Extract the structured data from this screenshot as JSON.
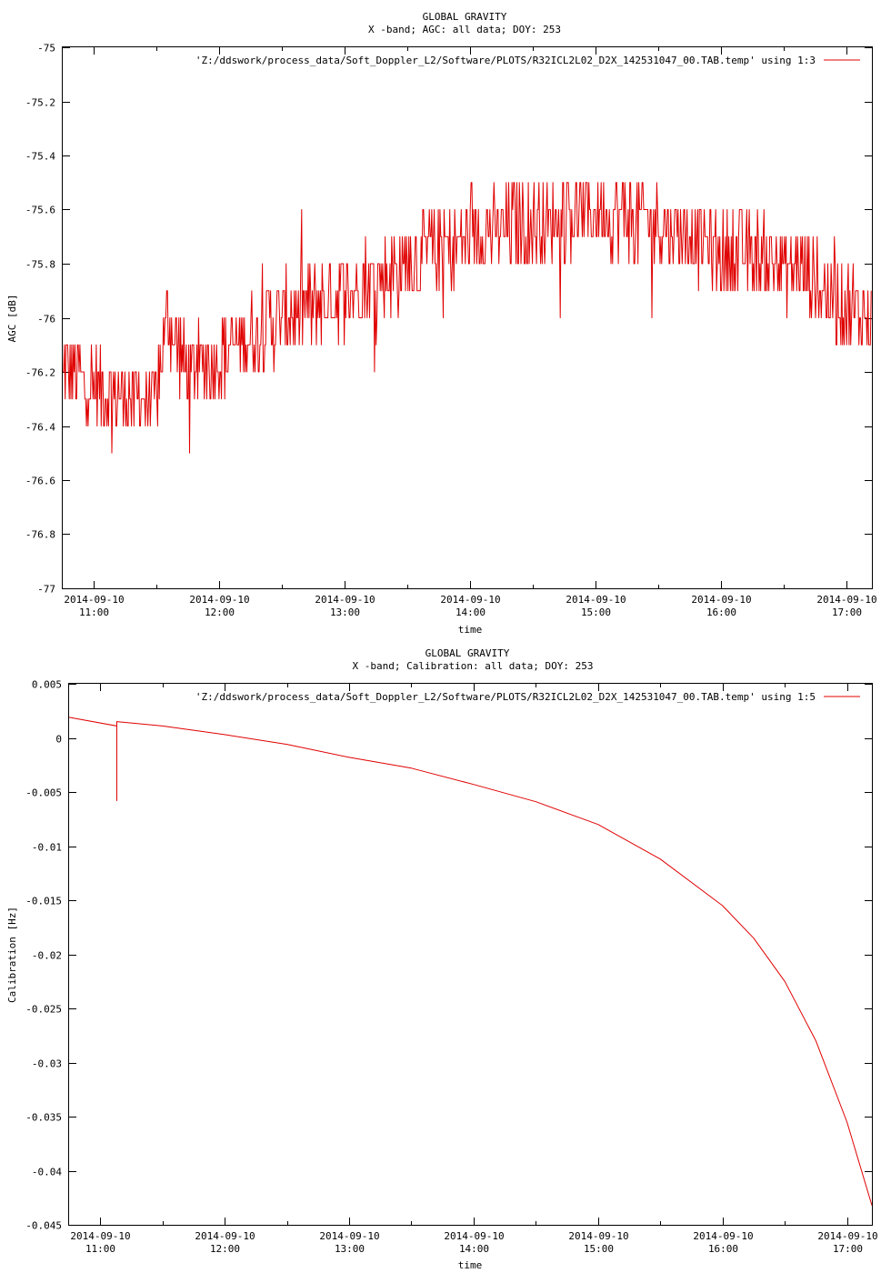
{
  "chart_data": [
    {
      "type": "line",
      "title": "GLOBAL GRAVITY",
      "subtitle": "X -band; AGC: all data; DOY: 253",
      "xlabel": "time",
      "ylabel": "AGC [dB]",
      "xlim": [
        "2014-09-10 10:45",
        "2014-09-10 17:12"
      ],
      "ylim": [
        -77,
        -75
      ],
      "grid": false,
      "legend_position": "top-right",
      "color": "#e00000",
      "yticks": [
        {
          "value": -75,
          "label": "-75"
        },
        {
          "value": -75.2,
          "label": "-75.2"
        },
        {
          "value": -75.4,
          "label": "-75.4"
        },
        {
          "value": -75.6,
          "label": "-75.6"
        },
        {
          "value": -75.8,
          "label": "-75.8"
        },
        {
          "value": -76,
          "label": "-76"
        },
        {
          "value": -76.2,
          "label": "-76.2"
        },
        {
          "value": -76.4,
          "label": "-76.4"
        },
        {
          "value": -76.6,
          "label": "-76.6"
        },
        {
          "value": -76.8,
          "label": "-76.8"
        },
        {
          "value": -77,
          "label": "-77"
        }
      ],
      "xticks": [
        {
          "value": "2014-09-10 11:00",
          "date": "2014-09-10",
          "time": "11:00"
        },
        {
          "value": "2014-09-10 12:00",
          "date": "2014-09-10",
          "time": "12:00"
        },
        {
          "value": "2014-09-10 13:00",
          "date": "2014-09-10",
          "time": "13:00"
        },
        {
          "value": "2014-09-10 14:00",
          "date": "2014-09-10",
          "time": "14:00"
        },
        {
          "value": "2014-09-10 15:00",
          "date": "2014-09-10",
          "time": "15:00"
        },
        {
          "value": "2014-09-10 16:00",
          "date": "2014-09-10",
          "time": "16:00"
        },
        {
          "value": "2014-09-10 17:00",
          "date": "2014-09-10",
          "time": "17:00"
        }
      ],
      "series": [
        {
          "name": "'Z:/ddswork/process_data/Soft_Doppler_L2/Software/PLOTS/R32ICL2L02_D2X_142531047_00.TAB.temp' using 1:3",
          "points": [
            {
              "x": "2014-09-10 10:45",
              "y": -76.2
            },
            {
              "x": "2014-09-10 11:00",
              "y": -76.25
            },
            {
              "x": "2014-09-10 11:15",
              "y": -76.3
            },
            {
              "x": "2014-09-10 11:30",
              "y": -76.3
            },
            {
              "x": "2014-09-10 11:35",
              "y": -76.0
            },
            {
              "x": "2014-09-10 11:45",
              "y": -76.2
            },
            {
              "x": "2014-09-10 12:00",
              "y": -76.15
            },
            {
              "x": "2014-09-10 12:30",
              "y": -76.0
            },
            {
              "x": "2014-09-10 13:00",
              "y": -75.9
            },
            {
              "x": "2014-09-10 13:30",
              "y": -75.8
            },
            {
              "x": "2014-09-10 14:00",
              "y": -75.7
            },
            {
              "x": "2014-09-10 14:30",
              "y": -75.65
            },
            {
              "x": "2014-09-10 15:00",
              "y": -75.6
            },
            {
              "x": "2014-09-10 15:30",
              "y": -75.65
            },
            {
              "x": "2014-09-10 16:00",
              "y": -75.75
            },
            {
              "x": "2014-09-10 16:30",
              "y": -75.8
            },
            {
              "x": "2014-09-10 17:00",
              "y": -75.95
            },
            {
              "x": "2014-09-10 17:12",
              "y": -76.0
            }
          ],
          "noise_amplitude_db": 0.15
        }
      ]
    },
    {
      "type": "line",
      "title": "GLOBAL GRAVITY",
      "subtitle": "X -band; Calibration: all data; DOY: 253",
      "xlabel": "time",
      "ylabel": "Calibration [Hz]",
      "xlim": [
        "2014-09-10 10:45",
        "2014-09-10 17:12"
      ],
      "ylim": [
        -0.045,
        0.005
      ],
      "grid": false,
      "legend_position": "top-right",
      "color": "#e00000",
      "yticks": [
        {
          "value": 0.005,
          "label": "0.005"
        },
        {
          "value": 0,
          "label": "0"
        },
        {
          "value": -0.005,
          "label": "-0.005"
        },
        {
          "value": -0.01,
          "label": "-0.01"
        },
        {
          "value": -0.015,
          "label": "-0.015"
        },
        {
          "value": -0.02,
          "label": "-0.02"
        },
        {
          "value": -0.025,
          "label": "-0.025"
        },
        {
          "value": -0.03,
          "label": "-0.03"
        },
        {
          "value": -0.035,
          "label": "-0.035"
        },
        {
          "value": -0.04,
          "label": "-0.04"
        },
        {
          "value": -0.045,
          "label": "-0.045"
        }
      ],
      "xticks": [
        {
          "value": "2014-09-10 11:00",
          "date": "2014-09-10",
          "time": "11:00"
        },
        {
          "value": "2014-09-10 12:00",
          "date": "2014-09-10",
          "time": "12:00"
        },
        {
          "value": "2014-09-10 13:00",
          "date": "2014-09-10",
          "time": "13:00"
        },
        {
          "value": "2014-09-10 14:00",
          "date": "2014-09-10",
          "time": "14:00"
        },
        {
          "value": "2014-09-10 15:00",
          "date": "2014-09-10",
          "time": "15:00"
        },
        {
          "value": "2014-09-10 16:00",
          "date": "2014-09-10",
          "time": "16:00"
        },
        {
          "value": "2014-09-10 17:00",
          "date": "2014-09-10",
          "time": "17:00"
        }
      ],
      "series": [
        {
          "name": "'Z:/ddswork/process_data/Soft_Doppler_L2/Software/PLOTS/R32ICL2L02_D2X_142531047_00.TAB.temp' using 1:5",
          "points": [
            {
              "x": "2014-09-10 10:45",
              "y": 0.0019
            },
            {
              "x": "2014-09-10 11:08",
              "y": 0.0011
            },
            {
              "x": "2014-09-10 11:08",
              "y": -0.0058
            },
            {
              "x": "2014-09-10 11:08",
              "y": 0.0015
            },
            {
              "x": "2014-09-10 11:30",
              "y": 0.0011
            },
            {
              "x": "2014-09-10 12:00",
              "y": 0.0003
            },
            {
              "x": "2014-09-10 12:30",
              "y": -0.0006
            },
            {
              "x": "2014-09-10 13:00",
              "y": -0.0018
            },
            {
              "x": "2014-09-10 13:30",
              "y": -0.0028
            },
            {
              "x": "2014-09-10 14:00",
              "y": -0.0043
            },
            {
              "x": "2014-09-10 14:30",
              "y": -0.0059
            },
            {
              "x": "2014-09-10 15:00",
              "y": -0.008
            },
            {
              "x": "2014-09-10 15:30",
              "y": -0.0112
            },
            {
              "x": "2014-09-10 16:00",
              "y": -0.0155
            },
            {
              "x": "2014-09-10 16:15",
              "y": -0.0185
            },
            {
              "x": "2014-09-10 16:30",
              "y": -0.0225
            },
            {
              "x": "2014-09-10 16:45",
              "y": -0.028
            },
            {
              "x": "2014-09-10 17:00",
              "y": -0.0355
            },
            {
              "x": "2014-09-10 17:12",
              "y": -0.0432
            }
          ]
        }
      ]
    }
  ]
}
